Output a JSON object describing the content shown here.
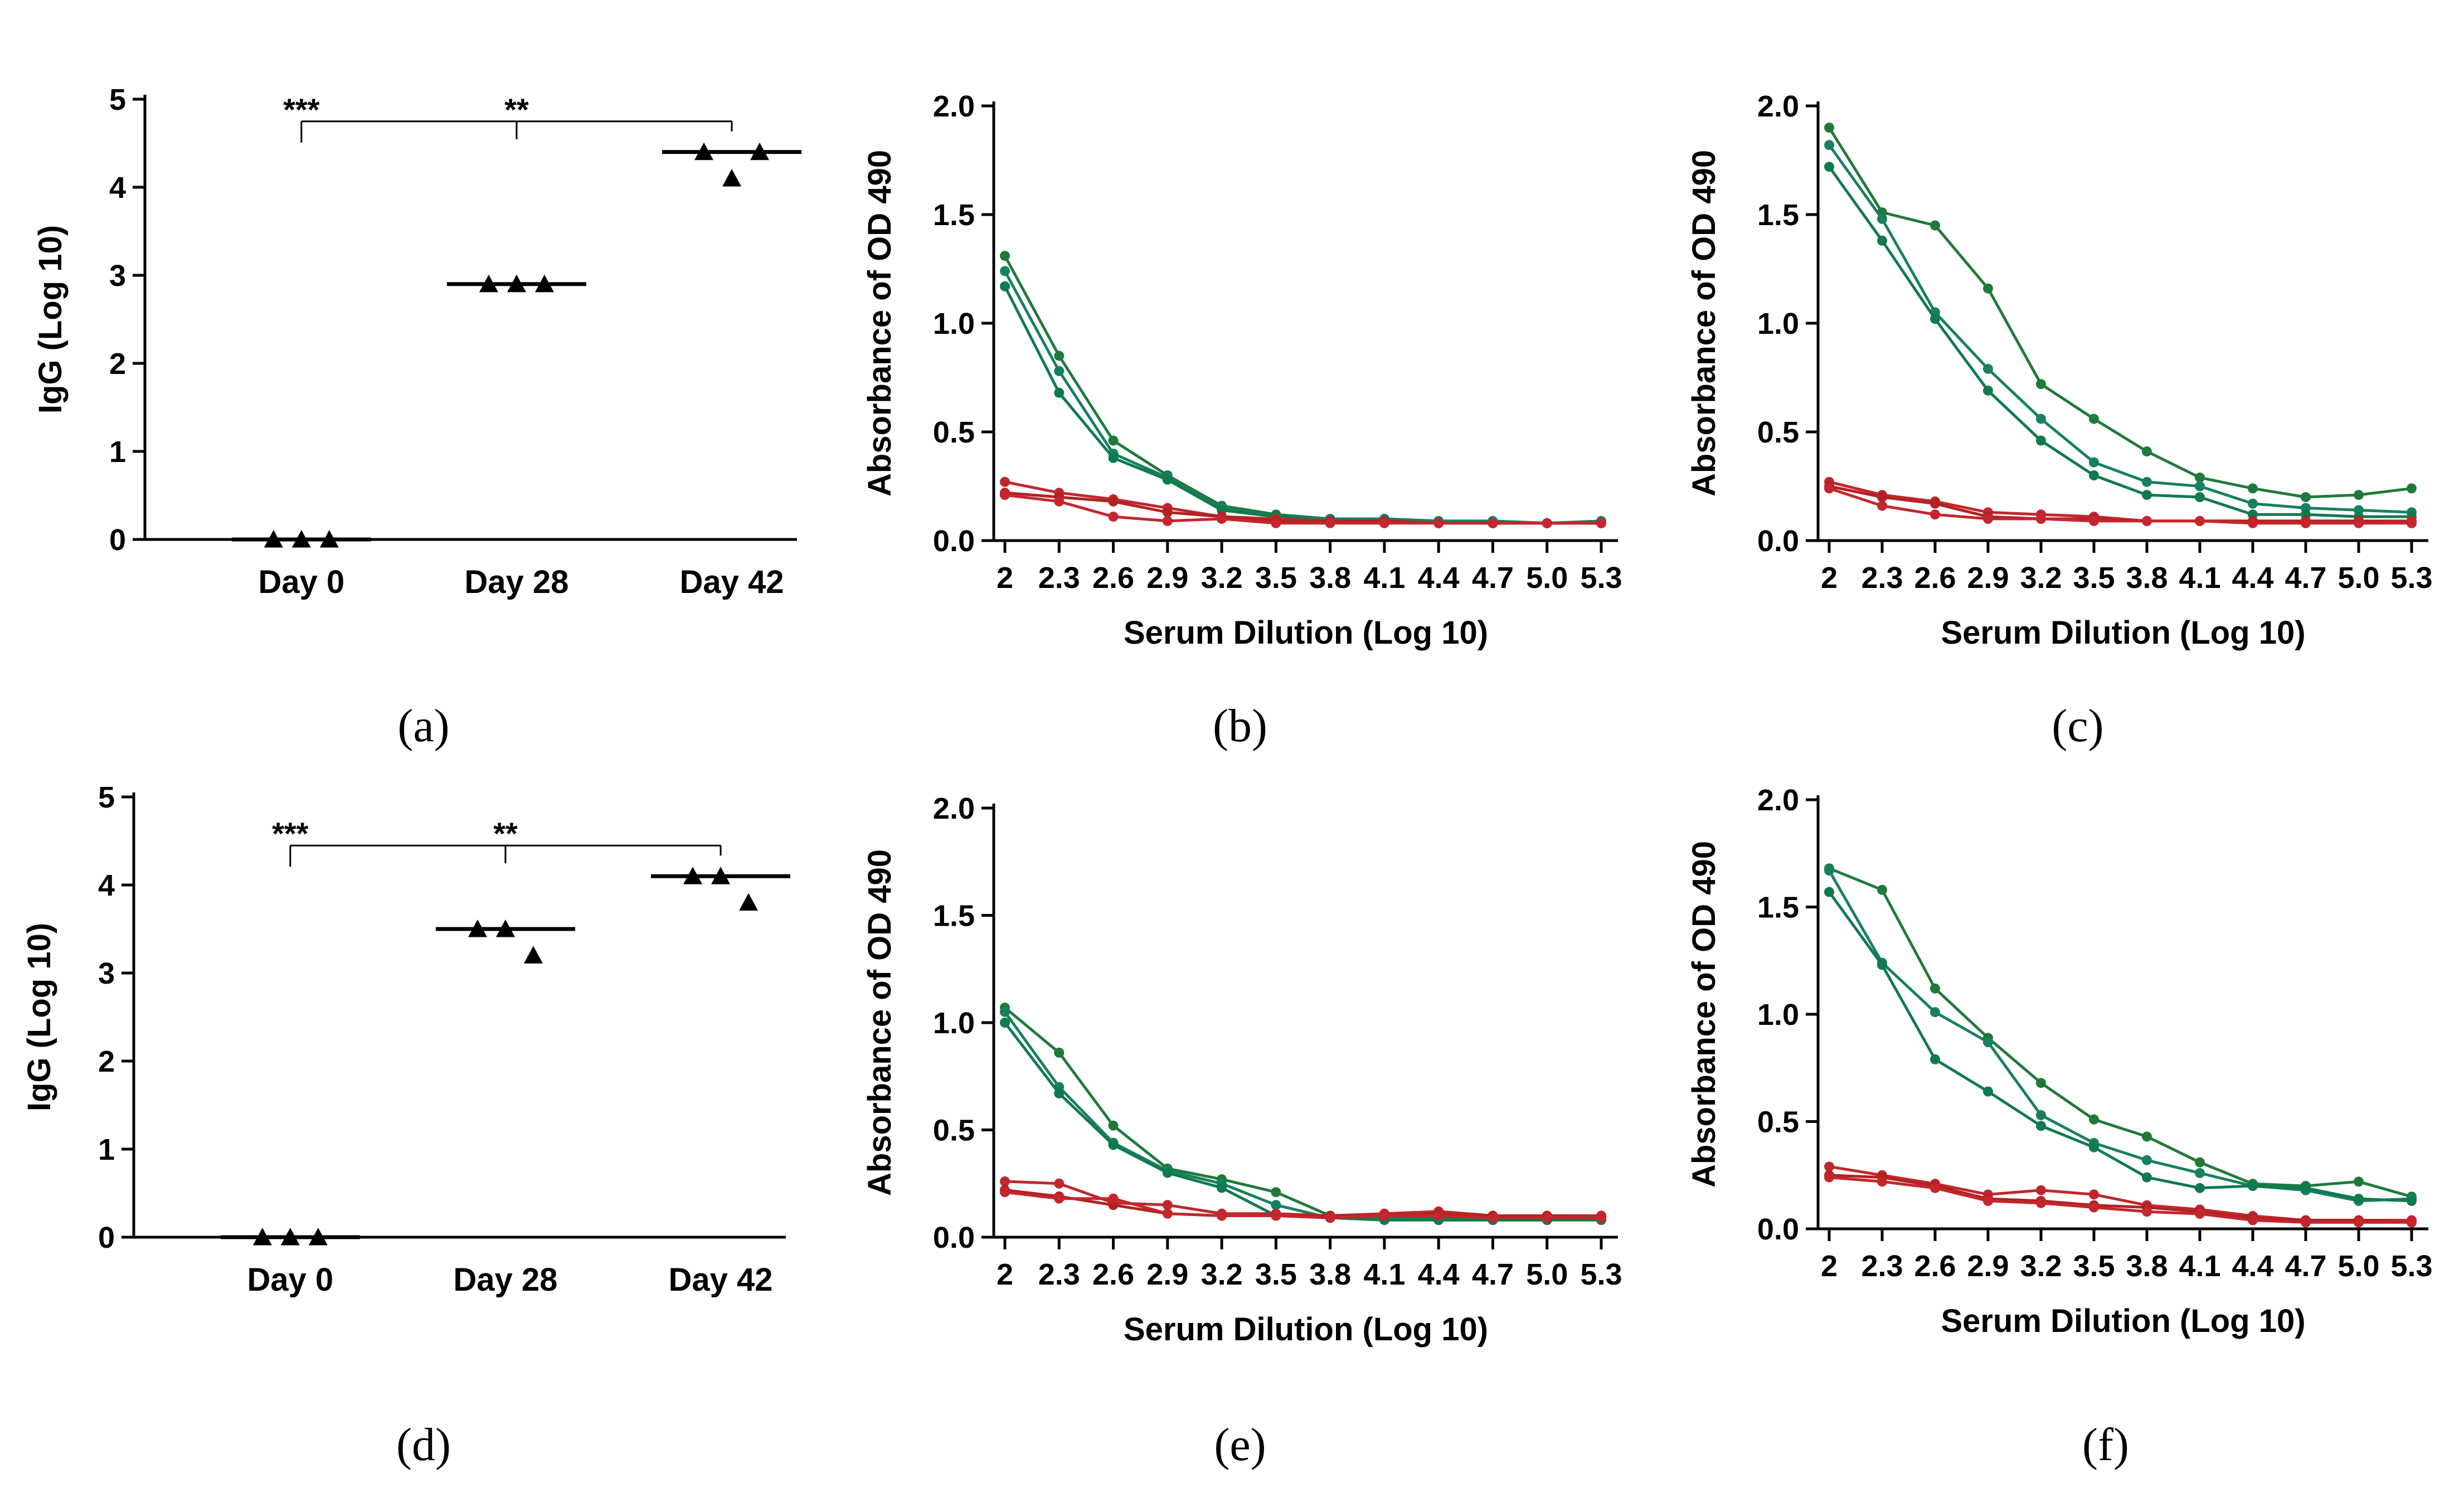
{
  "chart_data": [
    {
      "panel": "(a)",
      "type": "scatter",
      "xlabel": "",
      "ylabel": "IgG (Log 10)",
      "ylim": [
        0,
        5
      ],
      "yticks": [
        "0",
        "1",
        "2",
        "3",
        "4",
        "5"
      ],
      "categories": [
        "Day 0",
        "Day 28",
        "Day 42"
      ],
      "points": [
        [
          0,
          0,
          0
        ],
        [
          2.9,
          2.9,
          2.9
        ],
        [
          4.4,
          4.1,
          4.4
        ]
      ],
      "means": [
        0,
        2.9,
        4.4
      ],
      "significance": [
        {
          "from": 0,
          "to": 2,
          "label": "***"
        },
        {
          "from": 1,
          "to": 2,
          "label": "**"
        }
      ]
    },
    {
      "panel": "(b)",
      "type": "line",
      "xlabel": "Serum Dilution (Log 10)",
      "ylabel": "Absorbance of OD 490",
      "ylim": [
        0,
        2
      ],
      "yticks": [
        "0.0",
        "0.5",
        "1.0",
        "1.5",
        "2.0"
      ],
      "x": [
        "2",
        "2.3",
        "2.6",
        "2.9",
        "3.2",
        "3.5",
        "3.8",
        "4.1",
        "4.4",
        "4.7",
        "5.0",
        "5.3"
      ],
      "series": [
        {
          "group": "green",
          "values": [
            1.31,
            0.85,
            0.46,
            0.3,
            0.16,
            0.12,
            0.1,
            0.1,
            0.09,
            0.09,
            0.08,
            0.09
          ]
        },
        {
          "group": "green",
          "values": [
            1.24,
            0.78,
            0.4,
            0.29,
            0.15,
            0.11,
            0.1,
            0.1,
            0.09,
            0.09,
            0.08,
            0.09
          ]
        },
        {
          "group": "green",
          "values": [
            1.17,
            0.68,
            0.38,
            0.28,
            0.14,
            0.11,
            0.09,
            0.09,
            0.08,
            0.08,
            0.08,
            0.08
          ]
        },
        {
          "group": "red",
          "values": [
            0.27,
            0.22,
            0.19,
            0.15,
            0.11,
            0.1,
            0.09,
            0.09,
            0.08,
            0.08,
            0.08,
            0.08
          ]
        },
        {
          "group": "red",
          "values": [
            0.22,
            0.2,
            0.18,
            0.13,
            0.11,
            0.09,
            0.09,
            0.09,
            0.08,
            0.08,
            0.08,
            0.08
          ]
        },
        {
          "group": "red",
          "values": [
            0.21,
            0.18,
            0.11,
            0.09,
            0.1,
            0.08,
            0.08,
            0.08,
            0.08,
            0.08,
            0.08,
            0.08
          ]
        }
      ]
    },
    {
      "panel": "(c)",
      "type": "line",
      "xlabel": "Serum Dilution (Log 10)",
      "ylabel": "Absorbance of OD 490",
      "ylim": [
        0,
        2
      ],
      "yticks": [
        "0.0",
        "0.5",
        "1.0",
        "1.5",
        "2.0"
      ],
      "x": [
        "2",
        "2.3",
        "2.6",
        "2.9",
        "3.2",
        "3.5",
        "3.8",
        "4.1",
        "4.4",
        "4.7",
        "5.0",
        "5.3"
      ],
      "series": [
        {
          "group": "green",
          "values": [
            1.9,
            1.51,
            1.45,
            1.16,
            0.72,
            0.56,
            0.41,
            0.29,
            0.24,
            0.2,
            0.21,
            0.24
          ]
        },
        {
          "group": "green",
          "values": [
            1.82,
            1.48,
            1.05,
            0.79,
            0.56,
            0.36,
            0.27,
            0.25,
            0.17,
            0.15,
            0.14,
            0.13
          ]
        },
        {
          "group": "green",
          "values": [
            1.72,
            1.38,
            1.02,
            0.69,
            0.46,
            0.3,
            0.21,
            0.2,
            0.12,
            0.12,
            0.11,
            0.11
          ]
        },
        {
          "group": "red",
          "values": [
            0.27,
            0.21,
            0.18,
            0.13,
            0.12,
            0.11,
            0.09,
            0.09,
            0.09,
            0.09,
            0.09,
            0.09
          ]
        },
        {
          "group": "red",
          "values": [
            0.25,
            0.2,
            0.17,
            0.11,
            0.1,
            0.1,
            0.09,
            0.09,
            0.09,
            0.09,
            0.09,
            0.08
          ]
        },
        {
          "group": "red",
          "values": [
            0.24,
            0.16,
            0.12,
            0.1,
            0.1,
            0.09,
            0.09,
            0.09,
            0.08,
            0.08,
            0.08,
            0.08
          ]
        }
      ]
    },
    {
      "panel": "(d)",
      "type": "scatter",
      "xlabel": "",
      "ylabel": "IgG (Log 10)",
      "ylim": [
        0,
        5
      ],
      "yticks": [
        "0",
        "1",
        "2",
        "3",
        "4",
        "5"
      ],
      "categories": [
        "Day 0",
        "Day 28",
        "Day 42"
      ],
      "points": [
        [
          0,
          0,
          0
        ],
        [
          3.5,
          3.5,
          3.2
        ],
        [
          4.1,
          4.1,
          3.8
        ]
      ],
      "means": [
        0,
        3.5,
        4.1
      ],
      "significance": [
        {
          "from": 0,
          "to": 2,
          "label": "***"
        },
        {
          "from": 1,
          "to": 2,
          "label": "**"
        }
      ]
    },
    {
      "panel": "(e)",
      "type": "line",
      "xlabel": "Serum Dilution (Log 10)",
      "ylabel": "Absorbance of OD 490",
      "ylim": [
        0,
        2
      ],
      "yticks": [
        "0.0",
        "0.5",
        "1.0",
        "1.5",
        "2.0"
      ],
      "x": [
        "2",
        "2.3",
        "2.6",
        "2.9",
        "3.2",
        "3.5",
        "3.8",
        "4.1",
        "4.4",
        "4.7",
        "5.0",
        "5.3"
      ],
      "series": [
        {
          "group": "green",
          "values": [
            1.07,
            0.86,
            0.52,
            0.32,
            0.27,
            0.21,
            0.1,
            0.1,
            0.09,
            0.08,
            0.09,
            0.09
          ]
        },
        {
          "group": "green",
          "values": [
            1.05,
            0.7,
            0.44,
            0.31,
            0.25,
            0.15,
            0.09,
            0.09,
            0.08,
            0.08,
            0.08,
            0.1
          ]
        },
        {
          "group": "green",
          "values": [
            1.0,
            0.67,
            0.43,
            0.3,
            0.23,
            0.1,
            0.09,
            0.08,
            0.08,
            0.08,
            0.08,
            0.08
          ]
        },
        {
          "group": "red",
          "values": [
            0.26,
            0.25,
            0.16,
            0.15,
            0.11,
            0.11,
            0.1,
            0.11,
            0.12,
            0.1,
            0.1,
            0.1
          ]
        },
        {
          "group": "red",
          "values": [
            0.22,
            0.19,
            0.15,
            0.11,
            0.1,
            0.1,
            0.1,
            0.1,
            0.11,
            0.1,
            0.1,
            0.09
          ]
        },
        {
          "group": "red",
          "values": [
            0.21,
            0.18,
            0.18,
            0.11,
            0.1,
            0.1,
            0.09,
            0.1,
            0.1,
            0.09,
            0.09,
            0.09
          ]
        }
      ]
    },
    {
      "panel": "(f)",
      "type": "line",
      "xlabel": "Serum Dilution (Log 10)",
      "ylabel": "Absorbance of OD 490",
      "ylim": [
        0,
        2
      ],
      "yticks": [
        "0.0",
        "0.5",
        "1.0",
        "1.5",
        "2.0"
      ],
      "x": [
        "2",
        "2.3",
        "2.6",
        "2.9",
        "3.2",
        "3.5",
        "3.8",
        "4.1",
        "4.4",
        "4.7",
        "5.0",
        "5.3"
      ],
      "series": [
        {
          "group": "green",
          "values": [
            1.68,
            1.58,
            1.12,
            0.89,
            0.68,
            0.51,
            0.43,
            0.31,
            0.21,
            0.2,
            0.22,
            0.15
          ]
        },
        {
          "group": "green",
          "values": [
            1.67,
            1.24,
            1.01,
            0.87,
            0.53,
            0.4,
            0.32,
            0.26,
            0.2,
            0.18,
            0.13,
            0.14
          ]
        },
        {
          "group": "green",
          "values": [
            1.57,
            1.23,
            0.79,
            0.64,
            0.48,
            0.38,
            0.24,
            0.19,
            0.2,
            0.19,
            0.14,
            0.13
          ]
        },
        {
          "group": "red",
          "values": [
            0.29,
            0.25,
            0.21,
            0.16,
            0.18,
            0.16,
            0.11,
            0.09,
            0.06,
            0.04,
            0.04,
            0.04
          ]
        },
        {
          "group": "red",
          "values": [
            0.25,
            0.24,
            0.2,
            0.14,
            0.13,
            0.11,
            0.1,
            0.08,
            0.05,
            0.04,
            0.04,
            0.03
          ]
        },
        {
          "group": "red",
          "values": [
            0.24,
            0.22,
            0.19,
            0.13,
            0.12,
            0.1,
            0.08,
            0.07,
            0.04,
            0.03,
            0.03,
            0.03
          ]
        }
      ]
    }
  ],
  "colors": {
    "axis": "#000000",
    "green_series": [
      "#1f7a3a",
      "#178060",
      "#0f7a4e"
    ],
    "red_series": [
      "#c0272d",
      "#b22222",
      "#c4262e"
    ],
    "marker": "#000000"
  }
}
